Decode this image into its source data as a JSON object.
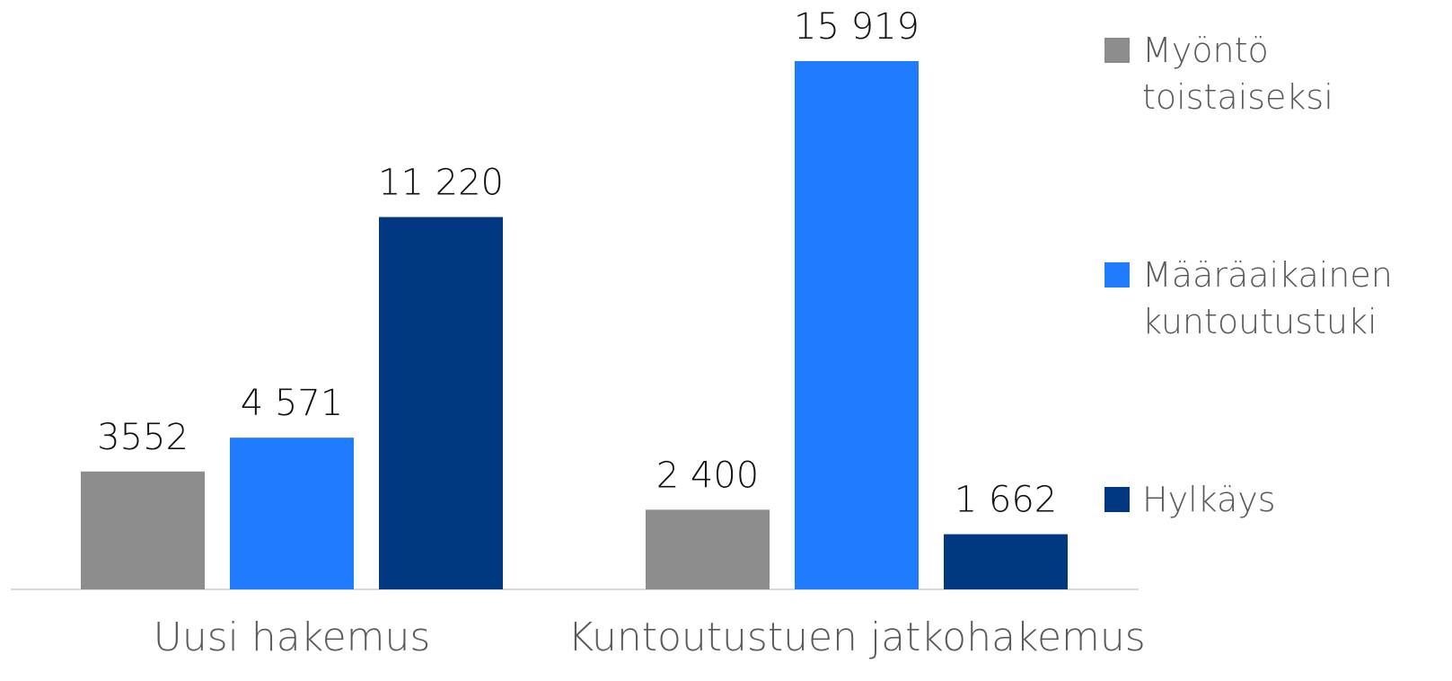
{
  "chart_data": {
    "type": "bar",
    "categories": [
      "Uusi hakemus",
      "Kuntoutustuen jatkohakemus"
    ],
    "series": [
      {
        "name": "Myöntö toistaiseksi",
        "color": "#8c8c8c",
        "values": [
          3552,
          2400
        ],
        "value_labels": [
          "3552",
          "2 400"
        ]
      },
      {
        "name": "Määräaikainen kuntoutustuki",
        "color": "#1f7cff",
        "values": [
          4571,
          15919
        ],
        "value_labels": [
          "4 571",
          "15 919"
        ]
      },
      {
        "name": "Hylkäys",
        "color": "#003882",
        "values": [
          11220,
          1662
        ],
        "value_labels": [
          "11 220",
          "1 662"
        ]
      }
    ],
    "legend": "right"
  }
}
